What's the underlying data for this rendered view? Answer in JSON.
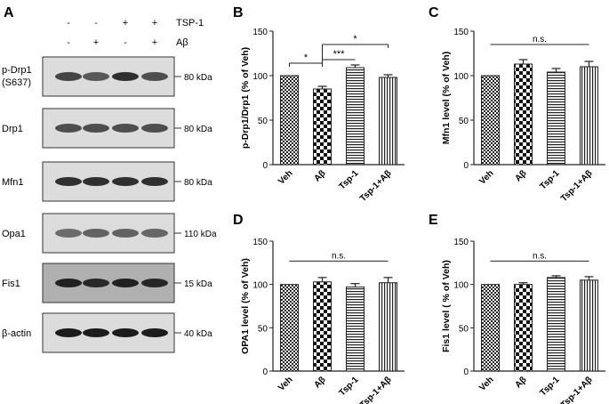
{
  "panel_letters": [
    "A",
    "B",
    "C",
    "D",
    "E"
  ],
  "western": {
    "treatment_labels": [
      "TSP-1",
      "Aβ"
    ],
    "signs": [
      [
        "-",
        "-",
        "+",
        "+"
      ],
      [
        "-",
        "+",
        "-",
        "+"
      ]
    ],
    "rows": [
      {
        "name": "p-Drp1",
        "name2": "(S637)",
        "marker": "80 kDa",
        "tone": "light"
      },
      {
        "name": "Drp1",
        "name2": "",
        "marker": "80 kDa",
        "tone": "light"
      },
      {
        "name": "Mfn1",
        "name2": "",
        "marker": "80 kDa",
        "tone": "light"
      },
      {
        "name": "Opa1",
        "name2": "",
        "marker": "110 kDa",
        "tone": "light"
      },
      {
        "name": "Fis1",
        "name2": "",
        "marker": "15 kDa",
        "tone": "dark"
      },
      {
        "name": "β-actin",
        "name2": "",
        "marker": "40 kDa",
        "tone": "light"
      }
    ]
  },
  "chart_data": [
    {
      "panel": "B",
      "type": "bar",
      "ylabel": "p-Drp1/Drp1 (% of Veh)",
      "ylim": [
        0,
        150
      ],
      "yticks": [
        0,
        50,
        100,
        150
      ],
      "categories": [
        "Veh",
        "Aβ",
        "Tsp-1",
        "Tsp-1+Aβ"
      ],
      "values": [
        100,
        85,
        109,
        98
      ],
      "errors": [
        0,
        3,
        3,
        3
      ],
      "patterns": [
        "checker",
        "checker_big",
        "hlines",
        "vlines"
      ],
      "annotations": [
        {
          "from": 0,
          "to": 1,
          "y": 114,
          "label": "*",
          "tick_left": -4,
          "tick_right": -4
        },
        {
          "from": 1,
          "to": 2,
          "y": 118,
          "label": "***",
          "tick_left": 0,
          "tick_right": 0
        },
        {
          "from": 1,
          "to": 3,
          "y": 135,
          "label": "*",
          "tick_left": -25,
          "tick_right": -4
        }
      ]
    },
    {
      "panel": "C",
      "type": "bar",
      "ylabel": "Mfn1 level (% of Veh)",
      "ylim": [
        0,
        150
      ],
      "yticks": [
        0,
        50,
        100,
        150
      ],
      "categories": [
        "Veh",
        "Aβ",
        "Tsp-1",
        "Tsp-1+Aβ"
      ],
      "values": [
        100,
        113,
        104,
        110
      ],
      "errors": [
        0,
        5,
        4,
        6
      ],
      "patterns": [
        "checker",
        "checker_big",
        "hlines",
        "vlines"
      ],
      "annotations": [
        {
          "from": 0,
          "to": 3,
          "y": 135,
          "label": "n.s."
        }
      ]
    },
    {
      "panel": "D",
      "type": "bar",
      "ylabel": "OPA1 level (% of Veh)",
      "ylim": [
        0,
        150
      ],
      "yticks": [
        0,
        50,
        100,
        150
      ],
      "categories": [
        "Veh",
        "Aβ",
        "Tsp-1",
        "Tsp-1+Aβ"
      ],
      "values": [
        100,
        103,
        97,
        102
      ],
      "errors": [
        0,
        5,
        4,
        6
      ],
      "patterns": [
        "checker",
        "checker_big",
        "hlines",
        "vlines"
      ],
      "annotations": [
        {
          "from": 0,
          "to": 3,
          "y": 127,
          "label": "n.s."
        }
      ]
    },
    {
      "panel": "E",
      "type": "bar",
      "ylabel": "Fis1 level ( % of Veh)",
      "ylim": [
        0,
        150
      ],
      "yticks": [
        0,
        50,
        100,
        150
      ],
      "categories": [
        "Veh",
        "Aβ",
        "Tsp-1",
        "Tsp-1+Aβ"
      ],
      "values": [
        100,
        100,
        108,
        105
      ],
      "errors": [
        0,
        2,
        2,
        4
      ],
      "patterns": [
        "checker",
        "checker_big",
        "hlines",
        "vlines"
      ],
      "annotations": [
        {
          "from": 0,
          "to": 3,
          "y": 127,
          "label": "n.s."
        }
      ]
    }
  ]
}
